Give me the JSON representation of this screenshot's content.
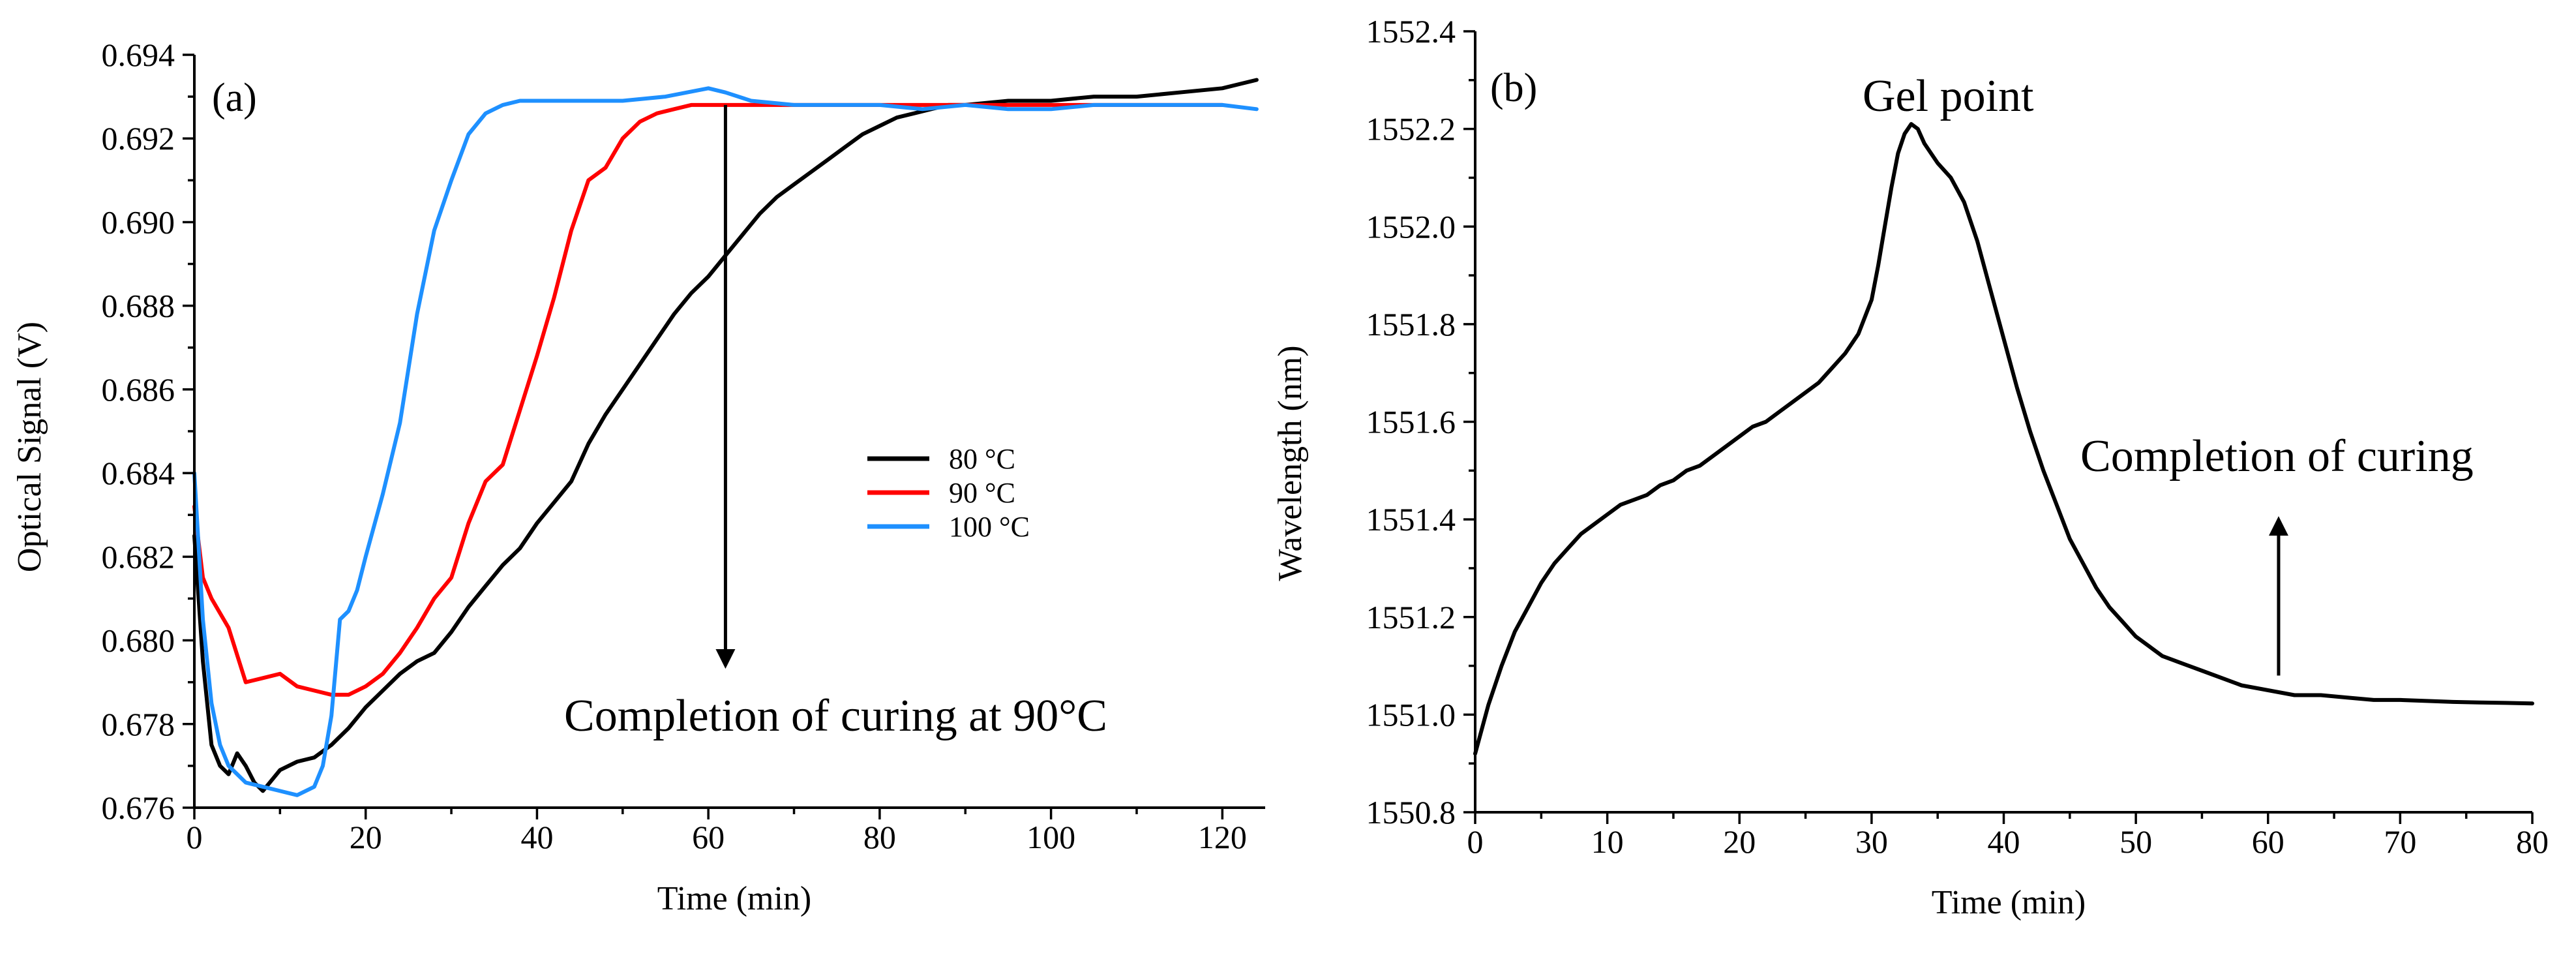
{
  "chart_data": [
    {
      "panel": "(a)",
      "type": "line",
      "xlabel": "Time (min)",
      "ylabel": "Optical Signal (V)",
      "xlim": [
        0,
        125
      ],
      "ylim": [
        0.676,
        0.694
      ],
      "xticks": [
        0,
        20,
        40,
        60,
        80,
        100,
        120
      ],
      "xtick_labels": [
        "0",
        "20",
        "40",
        "60",
        "80",
        "100",
        "120"
      ],
      "yticks": [
        0.676,
        0.678,
        0.68,
        0.682,
        0.684,
        0.686,
        0.688,
        0.69,
        0.692,
        0.694
      ],
      "ytick_labels": [
        "0.676",
        "0.678",
        "0.680",
        "0.682",
        "0.684",
        "0.686",
        "0.688",
        "0.690",
        "0.692",
        "0.694"
      ],
      "grid": false,
      "legend_position": "middle-right",
      "series": [
        {
          "name": "80 °C",
          "color": "#000000",
          "x": [
            0,
            1,
            2,
            3,
            4,
            5,
            6,
            7,
            8,
            10,
            12,
            14,
            16,
            18,
            20,
            22,
            24,
            26,
            28,
            30,
            32,
            34,
            36,
            38,
            40,
            42,
            44,
            46,
            48,
            50,
            52,
            54,
            56,
            58,
            60,
            62,
            64,
            66,
            68,
            70,
            72,
            74,
            76,
            78,
            80,
            82,
            84,
            86,
            88,
            90,
            95,
            100,
            105,
            110,
            115,
            120,
            124
          ],
          "y": [
            0.6825,
            0.6795,
            0.6775,
            0.677,
            0.6768,
            0.6773,
            0.677,
            0.6766,
            0.6764,
            0.6769,
            0.6771,
            0.6772,
            0.6775,
            0.6779,
            0.6784,
            0.6788,
            0.6792,
            0.6795,
            0.6797,
            0.6802,
            0.6808,
            0.6813,
            0.6818,
            0.6822,
            0.6828,
            0.6833,
            0.6838,
            0.6847,
            0.6854,
            0.686,
            0.6866,
            0.6872,
            0.6878,
            0.6883,
            0.6887,
            0.6892,
            0.6897,
            0.6902,
            0.6906,
            0.6909,
            0.6912,
            0.6915,
            0.6918,
            0.6921,
            0.6923,
            0.6925,
            0.6926,
            0.6927,
            0.6928,
            0.6928,
            0.6929,
            0.6929,
            0.693,
            0.693,
            0.6931,
            0.6932,
            0.6934
          ]
        },
        {
          "name": "90 °C",
          "color": "#ff0000",
          "x": [
            0,
            1,
            2,
            4,
            6,
            8,
            10,
            12,
            14,
            16,
            18,
            20,
            22,
            24,
            26,
            28,
            30,
            32,
            34,
            36,
            38,
            40,
            42,
            44,
            46,
            48,
            50,
            52,
            54,
            56,
            58,
            60,
            70,
            80,
            90,
            100,
            110,
            120
          ],
          "y": [
            0.6832,
            0.6815,
            0.681,
            0.6803,
            0.679,
            0.6791,
            0.6792,
            0.6789,
            0.6788,
            0.6787,
            0.6787,
            0.6789,
            0.6792,
            0.6797,
            0.6803,
            0.681,
            0.6815,
            0.6828,
            0.6838,
            0.6842,
            0.6855,
            0.6868,
            0.6882,
            0.6898,
            0.691,
            0.6913,
            0.692,
            0.6924,
            0.6926,
            0.6927,
            0.6928,
            0.6928,
            0.6928,
            0.6928,
            0.6928,
            0.6928,
            0.6928,
            0.6928
          ]
        },
        {
          "name": "100 °C",
          "color": "#1e90ff",
          "x": [
            0,
            1,
            2,
            3,
            4,
            5,
            6,
            8,
            10,
            12,
            14,
            15,
            16,
            17,
            18,
            19,
            20,
            22,
            24,
            26,
            28,
            30,
            32,
            34,
            36,
            38,
            40,
            45,
            50,
            55,
            60,
            62,
            65,
            70,
            75,
            80,
            85,
            90,
            95,
            100,
            105,
            110,
            115,
            120,
            124
          ],
          "y": [
            0.684,
            0.6805,
            0.6785,
            0.6775,
            0.677,
            0.6768,
            0.6766,
            0.6765,
            0.6764,
            0.6763,
            0.6765,
            0.677,
            0.6782,
            0.6805,
            0.6807,
            0.6812,
            0.682,
            0.6835,
            0.6852,
            0.6878,
            0.6898,
            0.691,
            0.6921,
            0.6926,
            0.6928,
            0.6929,
            0.6929,
            0.6929,
            0.6929,
            0.693,
            0.6932,
            0.6931,
            0.6929,
            0.6928,
            0.6928,
            0.6928,
            0.6927,
            0.6928,
            0.6927,
            0.6927,
            0.6928,
            0.6928,
            0.6928,
            0.6928,
            0.6927
          ]
        }
      ],
      "annotations": [
        {
          "text": "Completion of curing at 90°C",
          "arrow_x": 62,
          "arrow_from_y": 0.6928,
          "arrow_to_y": 0.6794,
          "direction": "down"
        }
      ]
    },
    {
      "panel": "(b)",
      "type": "line",
      "xlabel": "Time (min)",
      "ylabel": "Wavelength (nm)",
      "xlim": [
        0,
        80
      ],
      "ylim": [
        1550.8,
        1552.4
      ],
      "xticks": [
        0,
        10,
        20,
        30,
        40,
        50,
        60,
        70,
        80
      ],
      "xtick_labels": [
        "0",
        "10",
        "20",
        "30",
        "40",
        "50",
        "60",
        "70",
        "80"
      ],
      "yticks": [
        1550.8,
        1551.0,
        1551.2,
        1551.4,
        1551.6,
        1551.8,
        1552.0,
        1552.2,
        1552.4
      ],
      "ytick_labels": [
        "1550.8",
        "1551.0",
        "1551.2",
        "1551.4",
        "1551.6",
        "1551.8",
        "1552.0",
        "1552.2",
        "1552.4"
      ],
      "grid": false,
      "series": [
        {
          "color": "#000000",
          "x": [
            0,
            1,
            2,
            3,
            4,
            5,
            6,
            7,
            8,
            9,
            10,
            11,
            12,
            13,
            14,
            15,
            16,
            17,
            18,
            19,
            20,
            21,
            22,
            23,
            24,
            25,
            26,
            27,
            28,
            29,
            30,
            30.5,
            31,
            31.5,
            32,
            32.5,
            33,
            33.5,
            34,
            35,
            36,
            37,
            38,
            39,
            40,
            41,
            42,
            43,
            44,
            45,
            46,
            47,
            48,
            49,
            50,
            51,
            52,
            53,
            54,
            55,
            56,
            58,
            60,
            62,
            64,
            66,
            68,
            70,
            72,
            74,
            76,
            78,
            80
          ],
          "y": [
            1550.92,
            1551.02,
            1551.1,
            1551.17,
            1551.22,
            1551.27,
            1551.31,
            1551.34,
            1551.37,
            1551.39,
            1551.41,
            1551.43,
            1551.44,
            1551.45,
            1551.47,
            1551.48,
            1551.5,
            1551.51,
            1551.53,
            1551.55,
            1551.57,
            1551.59,
            1551.6,
            1551.62,
            1551.64,
            1551.66,
            1551.68,
            1551.71,
            1551.74,
            1551.78,
            1551.85,
            1551.92,
            1552.0,
            1552.08,
            1552.15,
            1552.19,
            1552.21,
            1552.2,
            1552.17,
            1552.13,
            1552.1,
            1552.05,
            1551.97,
            1551.87,
            1551.77,
            1551.67,
            1551.58,
            1551.5,
            1551.43,
            1551.36,
            1551.31,
            1551.26,
            1551.22,
            1551.19,
            1551.16,
            1551.14,
            1551.12,
            1551.11,
            1551.1,
            1551.09,
            1551.08,
            1551.06,
            1551.05,
            1551.04,
            1551.04,
            1551.035,
            1551.03,
            1551.03,
            1551.028,
            1551.026,
            1551.025,
            1551.024,
            1551.023
          ]
        }
      ],
      "annotations": [
        {
          "text": "Gel point",
          "x": 32.8,
          "y": 1552.21
        },
        {
          "text": "Completion of curing",
          "arrow_x": 60.8,
          "arrow_from_y": 1551.08,
          "arrow_to_y": 1551.4,
          "direction": "up"
        }
      ]
    }
  ]
}
